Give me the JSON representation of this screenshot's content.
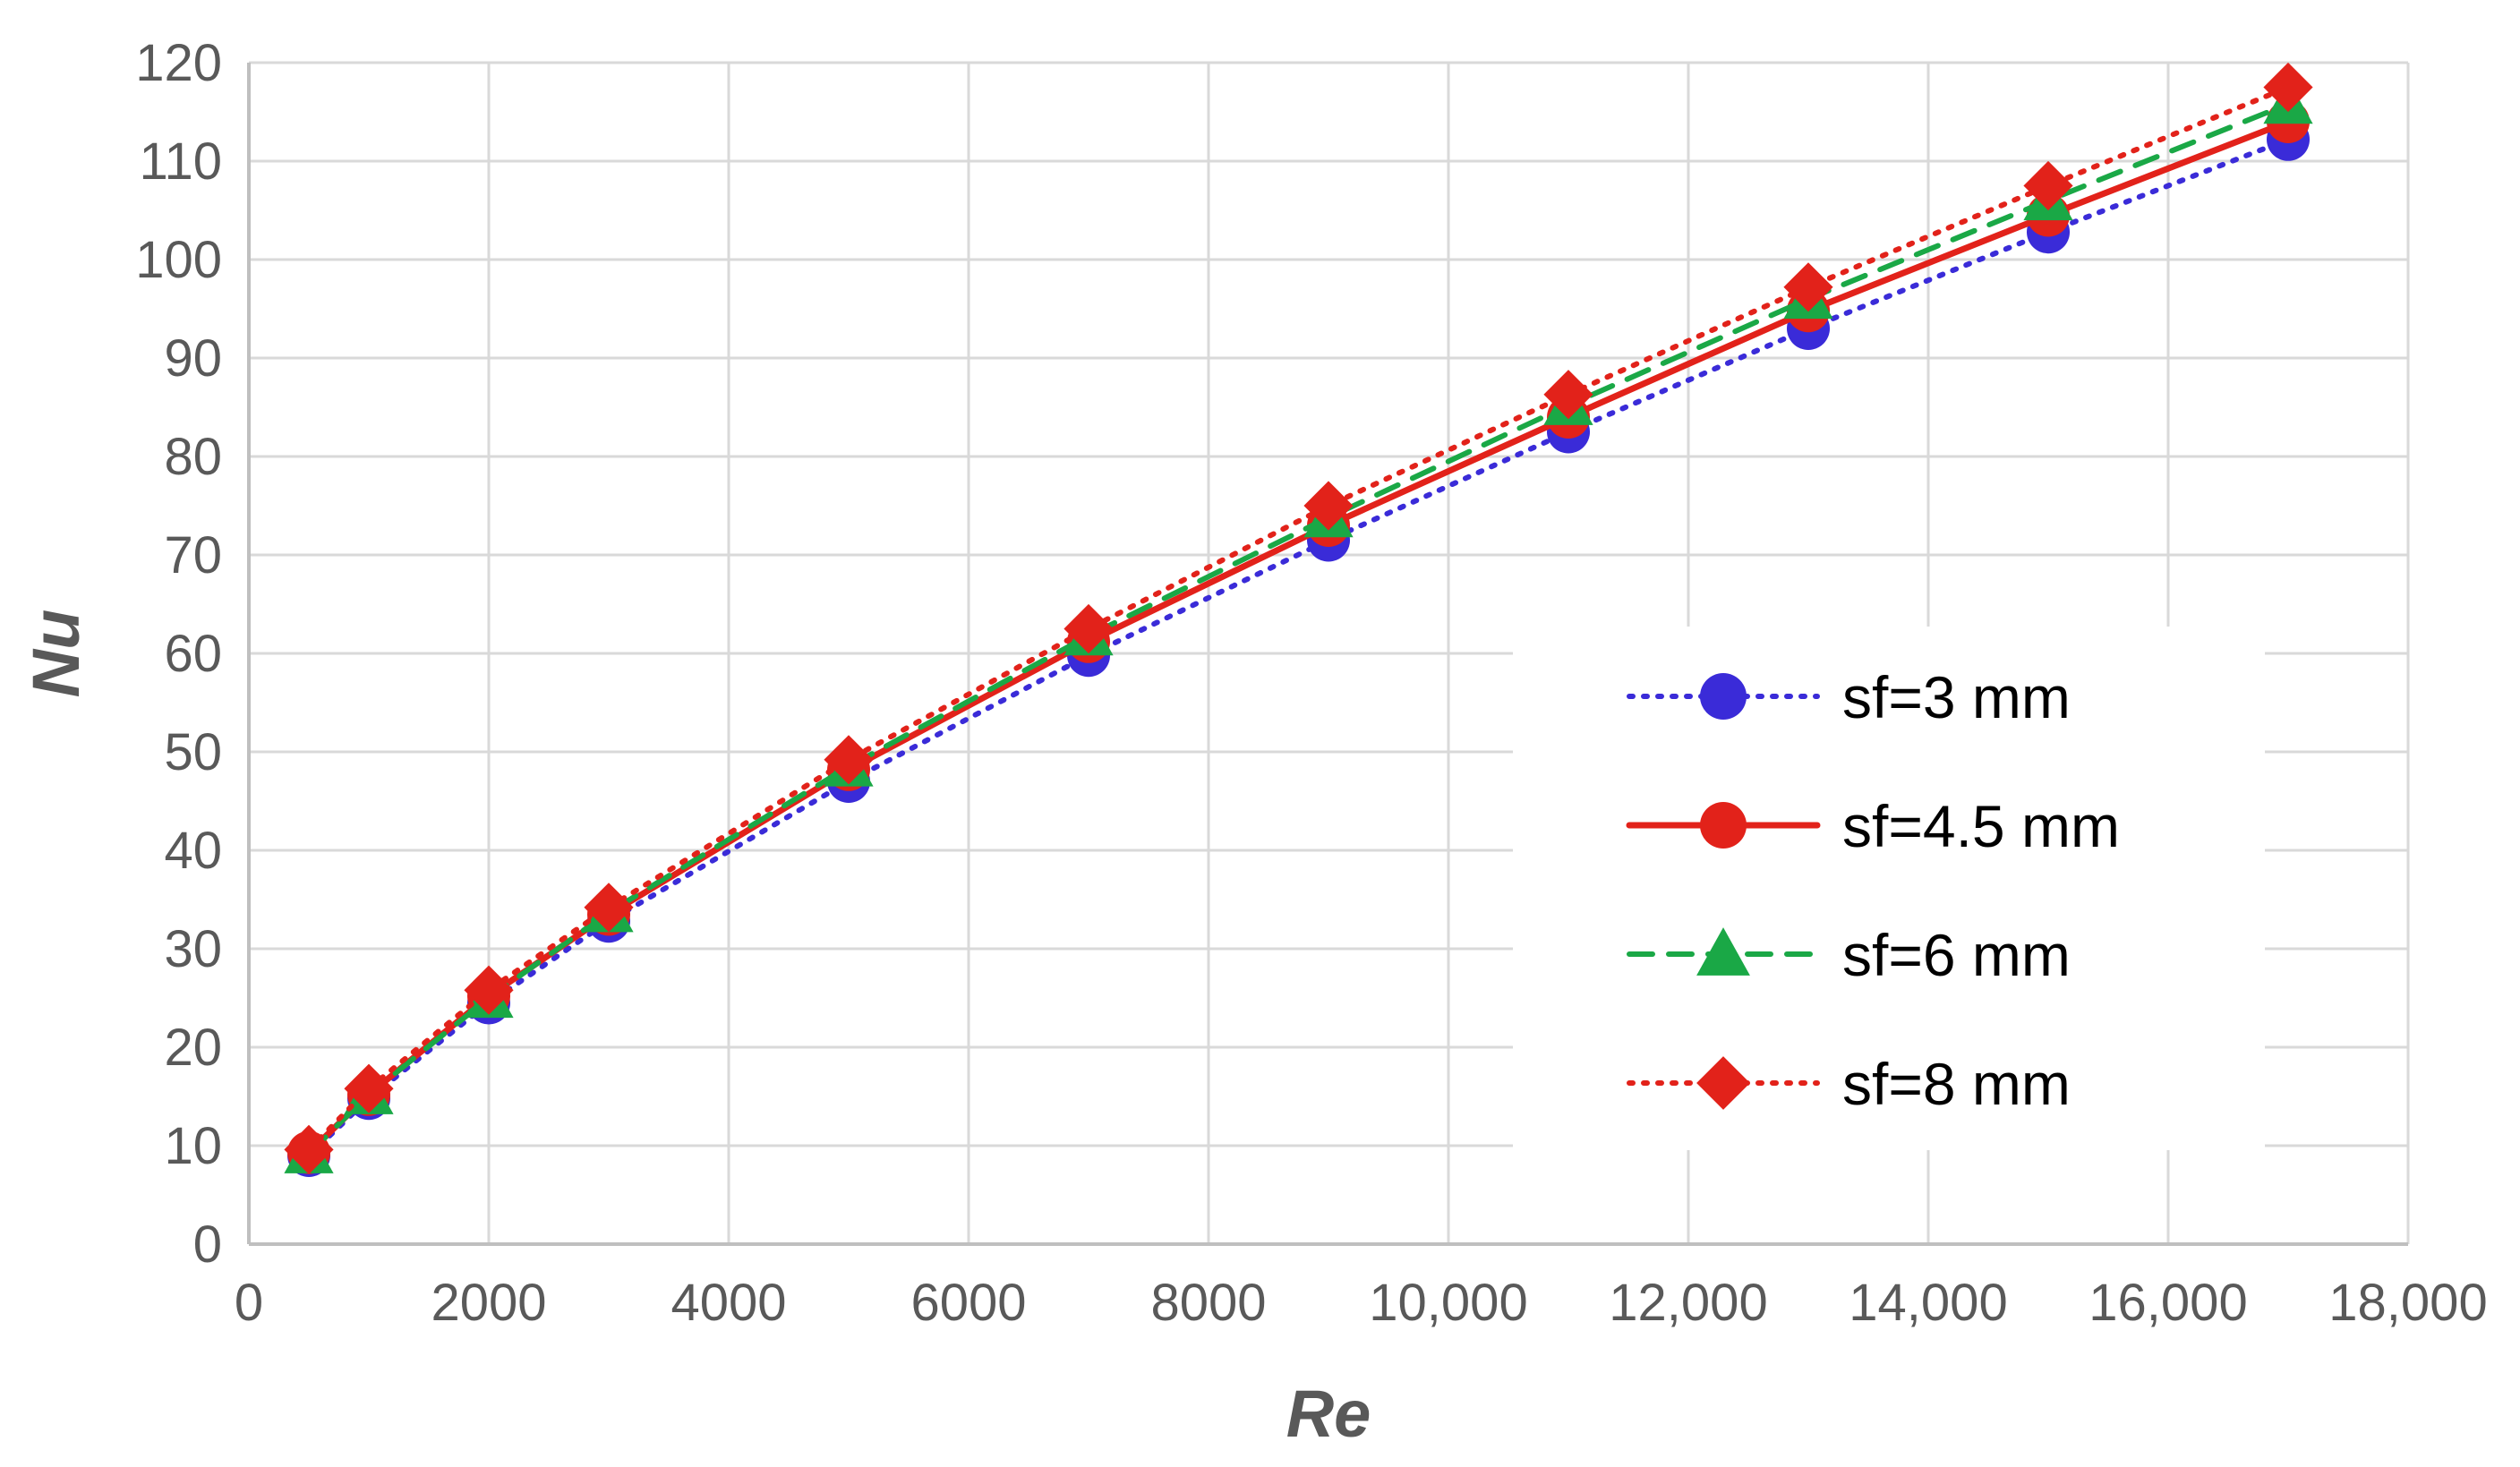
{
  "chart_data": {
    "type": "line",
    "xlabel": "Re",
    "ylabel": "Nu",
    "xlim": [
      0,
      18000
    ],
    "ylim": [
      0,
      120
    ],
    "x_ticks": [
      0,
      2000,
      4000,
      6000,
      8000,
      10000,
      12000,
      14000,
      16000,
      18000
    ],
    "x_tick_labels": [
      "0",
      "2000",
      "4000",
      "6000",
      "8000",
      "10,000",
      "12,000",
      "14,000",
      "16,000",
      "18,000"
    ],
    "y_ticks": [
      0,
      10,
      20,
      30,
      40,
      50,
      60,
      70,
      80,
      90,
      100,
      110,
      120
    ],
    "y_tick_labels": [
      "0",
      "10",
      "20",
      "30",
      "40",
      "50",
      "60",
      "70",
      "80",
      "90",
      "100",
      "110",
      "120"
    ],
    "grid": true,
    "legend_position": "right",
    "x": [
      500,
      1000,
      2000,
      3000,
      5000,
      7000,
      9000,
      11000,
      13000,
      15000,
      17000
    ],
    "series": [
      {
        "name": "sf=3 mm",
        "color": "#3a2bd8",
        "line_style": "dotted",
        "marker": "circle",
        "values": [
          9,
          14.8,
          24.5,
          32.8,
          47,
          59.8,
          71.5,
          82.5,
          93,
          102.8,
          112.2
        ]
      },
      {
        "name": "sf=4.5 mm",
        "color": "#e2221a",
        "line_style": "solid",
        "marker": "circle",
        "values": [
          9.3,
          15.2,
          25.2,
          33.5,
          48.2,
          61.2,
          73,
          84,
          94.8,
          104.5,
          114
        ]
      },
      {
        "name": "sf=6 mm",
        "color": "#1aa846",
        "line_style": "dashed",
        "marker": "triangle",
        "values": [
          9.2,
          15.2,
          25,
          33.7,
          48.5,
          61.8,
          73.8,
          85.2,
          96,
          106,
          115.8
        ]
      },
      {
        "name": "sf=8 mm",
        "color": "#e2221a",
        "line_style": "dotted",
        "marker": "diamond",
        "values": [
          9.6,
          15.8,
          25.8,
          34.2,
          49.2,
          62.5,
          75,
          86.3,
          97.2,
          107.5,
          117.5
        ]
      }
    ]
  }
}
